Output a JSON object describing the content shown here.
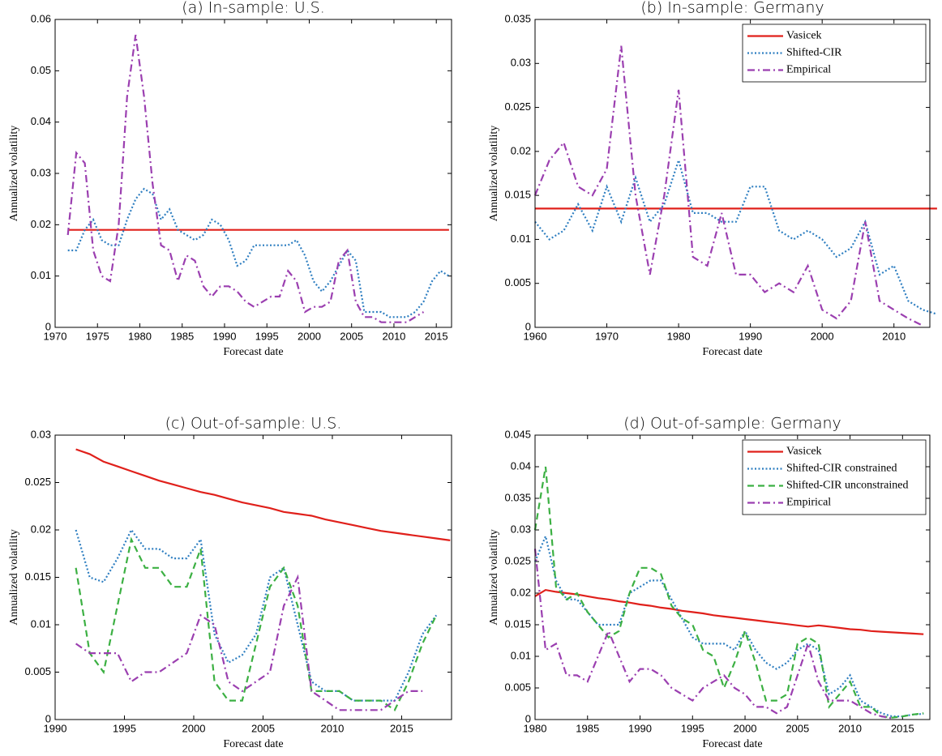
{
  "chart_data": [
    {
      "type": "line",
      "title": "(a) In-sample: U.S.",
      "xlabel": "Forecast date",
      "ylabel": "Annualized volatility",
      "x": [
        1971.5,
        1972.5,
        1973.5,
        1974.5,
        1975.5,
        1976.5,
        1977.5,
        1978.5,
        1979.5,
        1980.5,
        1981.5,
        1982.5,
        1983.5,
        1984.5,
        1985.5,
        1986.5,
        1987.5,
        1988.5,
        1989.5,
        1990.5,
        1991.5,
        1992.5,
        1993.5,
        1994.5,
        1995.5,
        1996.5,
        1997.5,
        1998.5,
        1999.5,
        2000.5,
        2001.5,
        2002.5,
        2003.5,
        2004.5,
        2005.5,
        2006.5,
        2007.5,
        2008.5,
        2009.5,
        2010.5,
        2011.5,
        2012.5,
        2013.5,
        2014.5,
        2015.5,
        2016.5
      ],
      "series": [
        {
          "color": "#e0201b",
          "style": "solid",
          "values": [
            0.019,
            0.019,
            0.019,
            0.019,
            0.019,
            0.019,
            0.019,
            0.019,
            0.019,
            0.019,
            0.019,
            0.019,
            0.019,
            0.019,
            0.019,
            0.019,
            0.019,
            0.019,
            0.019,
            0.019,
            0.019,
            0.019,
            0.019,
            0.019,
            0.019,
            0.019,
            0.019,
            0.019,
            0.019,
            0.019,
            0.019,
            0.019,
            0.019,
            0.019,
            0.019,
            0.019,
            0.019,
            0.019,
            0.019,
            0.019,
            0.019,
            0.019,
            0.019,
            0.019,
            0.019,
            0.019
          ]
        },
        {
          "color": "#2f7fc1",
          "style": "dotted",
          "values": [
            0.015,
            0.015,
            0.019,
            0.021,
            0.017,
            0.016,
            0.016,
            0.021,
            0.025,
            0.027,
            0.026,
            0.021,
            0.023,
            0.019,
            0.018,
            0.017,
            0.018,
            0.021,
            0.02,
            0.017,
            0.012,
            0.013,
            0.016,
            0.016,
            0.016,
            0.016,
            0.016,
            0.017,
            0.014,
            0.009,
            0.007,
            0.009,
            0.012,
            0.015,
            0.013,
            0.003,
            0.003,
            0.003,
            0.002,
            0.002,
            0.002,
            0.003,
            0.005,
            0.009,
            0.011,
            0.01
          ]
        },
        {
          "color": "#9b3fb0",
          "style": "dashdot",
          "values": [
            0.018,
            0.034,
            0.032,
            0.015,
            0.01,
            0.009,
            0.02,
            0.045,
            0.057,
            0.045,
            0.028,
            0.016,
            0.015,
            0.009,
            0.014,
            0.013,
            0.008,
            0.006,
            0.008,
            0.008,
            0.007,
            0.005,
            0.004,
            0.005,
            0.006,
            0.006,
            0.011,
            0.009,
            0.003,
            0.004,
            0.004,
            0.005,
            0.013,
            0.015,
            0.005,
            0.002,
            0.002,
            0.001,
            0.001,
            0.001,
            0.001,
            0.002,
            0.003,
            null,
            null,
            null
          ]
        }
      ],
      "xlim": [
        1970,
        2016.8
      ],
      "ylim": [
        0,
        0.06
      ],
      "xticks": [
        1970,
        1975,
        1980,
        1985,
        1990,
        1995,
        2000,
        2005,
        2010,
        2015
      ],
      "yticks": [
        0,
        0.01,
        0.02,
        0.03,
        0.04,
        0.05,
        0.06
      ],
      "legend": false
    },
    {
      "type": "line",
      "title": "(b) In-sample: Germany",
      "xlabel": "Forecast date",
      "ylabel": "Annualized volatility",
      "x": [
        1960,
        1962,
        1964,
        1966,
        1968,
        1970,
        1972,
        1974,
        1976,
        1978,
        1980,
        1982,
        1984,
        1986,
        1988,
        1990,
        1992,
        1994,
        1996,
        1998,
        2000,
        2002,
        2004,
        2006,
        2008,
        2010,
        2012,
        2014,
        2016
      ],
      "series": [
        {
          "name": "Vasicek",
          "color": "#e0201b",
          "style": "solid",
          "values": [
            0.0135,
            0.0135,
            0.0135,
            0.0135,
            0.0135,
            0.0135,
            0.0135,
            0.0135,
            0.0135,
            0.0135,
            0.0135,
            0.0135,
            0.0135,
            0.0135,
            0.0135,
            0.0135,
            0.0135,
            0.0135,
            0.0135,
            0.0135,
            0.0135,
            0.0135,
            0.0135,
            0.0135,
            0.0135,
            0.0135,
            0.0135,
            0.0135,
            0.0135
          ]
        },
        {
          "name": "Shifted-CIR",
          "color": "#2f7fc1",
          "style": "dotted",
          "values": [
            0.012,
            0.01,
            0.011,
            0.014,
            0.011,
            0.016,
            0.012,
            0.017,
            0.012,
            0.014,
            0.019,
            0.013,
            0.013,
            0.012,
            0.012,
            0.016,
            0.016,
            0.011,
            0.01,
            0.011,
            0.01,
            0.008,
            0.009,
            0.012,
            0.006,
            0.007,
            0.003,
            0.002,
            0.0015
          ]
        },
        {
          "name": "Empirical",
          "color": "#9b3fb0",
          "style": "dashdot",
          "values": [
            0.015,
            0.019,
            0.021,
            0.016,
            0.015,
            0.018,
            0.032,
            0.015,
            0.006,
            0.015,
            0.027,
            0.008,
            0.007,
            0.013,
            0.006,
            0.006,
            0.004,
            0.005,
            0.004,
            0.007,
            0.002,
            0.001,
            0.003,
            0.012,
            0.003,
            0.002,
            0.001,
            0.0002,
            null
          ]
        }
      ],
      "xlim": [
        1960,
        2015
      ],
      "ylim": [
        0,
        0.035
      ],
      "xticks": [
        1960,
        1970,
        1980,
        1990,
        2000,
        2010
      ],
      "yticks": [
        0,
        0.005,
        0.01,
        0.015,
        0.02,
        0.025,
        0.03,
        0.035
      ],
      "legend": "upper right"
    },
    {
      "type": "line",
      "title": "(c) Out-of-sample: U.S.",
      "xlabel": "Forecast date",
      "ylabel": "Annualized volatility",
      "x": [
        1991.5,
        1992.5,
        1993.5,
        1994.5,
        1995.5,
        1996.5,
        1997.5,
        1998.5,
        1999.5,
        2000.5,
        2001.5,
        2002.5,
        2003.5,
        2004.5,
        2005.5,
        2006.5,
        2007.5,
        2008.5,
        2009.5,
        2010.5,
        2011.5,
        2012.5,
        2013.5,
        2014.5,
        2015.5,
        2016.5,
        2017.5,
        2018.5
      ],
      "series": [
        {
          "color": "#e0201b",
          "style": "solid",
          "values": [
            0.0285,
            0.028,
            0.0272,
            0.0267,
            0.0262,
            0.0257,
            0.0252,
            0.0248,
            0.0244,
            0.024,
            0.0237,
            0.0233,
            0.0229,
            0.0226,
            0.0223,
            0.0219,
            0.0217,
            0.0215,
            0.0211,
            0.0208,
            0.0205,
            0.0202,
            0.0199,
            0.0197,
            0.0195,
            0.0193,
            0.0191,
            0.0189
          ]
        },
        {
          "color": "#2f7fc1",
          "style": "dotted",
          "values": [
            0.02,
            0.015,
            0.0145,
            0.017,
            0.02,
            0.018,
            0.018,
            0.017,
            0.017,
            0.019,
            0.009,
            0.006,
            0.0068,
            0.009,
            0.015,
            0.016,
            0.01,
            0.004,
            0.003,
            0.003,
            0.002,
            0.002,
            0.002,
            0.002,
            0.005,
            0.009,
            0.011,
            null
          ]
        },
        {
          "color": "#3cb043",
          "style": "dashed",
          "values": [
            0.016,
            0.007,
            0.005,
            0.012,
            0.019,
            0.016,
            0.016,
            0.014,
            0.014,
            0.018,
            0.004,
            0.002,
            0.002,
            0.008,
            0.014,
            0.016,
            0.012,
            0.003,
            0.003,
            0.003,
            0.002,
            0.002,
            0.002,
            0.001,
            0.004,
            0.008,
            0.011,
            null
          ]
        },
        {
          "color": "#9b3fb0",
          "style": "dashdot",
          "values": [
            0.008,
            0.007,
            0.007,
            0.007,
            0.004,
            0.005,
            0.005,
            0.006,
            0.007,
            0.011,
            0.01,
            0.004,
            0.003,
            0.004,
            0.005,
            0.012,
            0.015,
            0.003,
            0.002,
            0.001,
            0.001,
            0.001,
            0.001,
            0.002,
            0.003,
            0.003,
            null,
            null
          ]
        }
      ],
      "xlim": [
        1990,
        2018.6
      ],
      "ylim": [
        0,
        0.03
      ],
      "xticks": [
        1990,
        1995,
        2000,
        2005,
        2010,
        2015
      ],
      "yticks": [
        0,
        0.005,
        0.01,
        0.015,
        0.02,
        0.025,
        0.03
      ],
      "legend": false
    },
    {
      "type": "line",
      "title": "(d) Out-of-sample: Germany",
      "xlabel": "Forecast date",
      "ylabel": "Annualized volatility",
      "x": [
        1980,
        1981,
        1982,
        1983,
        1984,
        1985,
        1986,
        1987,
        1988,
        1989,
        1990,
        1991,
        1992,
        1993,
        1994,
        1995,
        1996,
        1997,
        1998,
        1999,
        2000,
        2001,
        2002,
        2003,
        2004,
        2005,
        2006,
        2007,
        2008,
        2009,
        2010,
        2011,
        2012,
        2013,
        2014,
        2015,
        2016,
        2017
      ],
      "series": [
        {
          "name": "Vasicek",
          "color": "#e0201b",
          "style": "solid",
          "values": [
            0.0195,
            0.0205,
            0.0202,
            0.02,
            0.0198,
            0.0195,
            0.0192,
            0.019,
            0.0187,
            0.0185,
            0.0182,
            0.018,
            0.0177,
            0.0175,
            0.0172,
            0.017,
            0.0168,
            0.0165,
            0.0163,
            0.0161,
            0.0159,
            0.0157,
            0.0155,
            0.0153,
            0.0151,
            0.0149,
            0.0147,
            0.0149,
            0.0147,
            0.0145,
            0.0143,
            0.0142,
            0.014,
            0.0139,
            0.0138,
            0.0137,
            0.0136,
            0.0135
          ]
        },
        {
          "name": "Shifted-CIR constrained",
          "color": "#2f7fc1",
          "style": "dotted",
          "values": [
            0.025,
            0.029,
            0.022,
            0.019,
            0.019,
            0.017,
            0.015,
            0.015,
            0.015,
            0.02,
            0.021,
            0.022,
            0.022,
            0.019,
            0.016,
            0.013,
            0.012,
            0.012,
            0.012,
            0.011,
            0.014,
            0.011,
            0.009,
            0.008,
            0.009,
            0.011,
            0.012,
            0.011,
            0.004,
            0.005,
            0.007,
            0.003,
            0.002,
            0.001,
            0.0005,
            0.0005,
            0.0008,
            0.0009
          ]
        },
        {
          "name": "Shifted-CIR unconstrained",
          "color": "#3cb043",
          "style": "dashed",
          "values": [
            0.03,
            0.04,
            0.021,
            0.019,
            0.02,
            0.017,
            0.015,
            0.013,
            0.014,
            0.02,
            0.024,
            0.024,
            0.023,
            0.018,
            0.016,
            0.015,
            0.011,
            0.01,
            0.005,
            0.009,
            0.014,
            0.009,
            0.003,
            0.003,
            0.004,
            0.012,
            0.013,
            0.012,
            0.002,
            0.004,
            0.006,
            0.002,
            0.002,
            0.0005,
            0.0003,
            0.0005,
            0.0008,
            0.001
          ]
        },
        {
          "name": "Empirical",
          "color": "#9b3fb0",
          "style": "dashdot",
          "values": [
            0.027,
            0.011,
            0.012,
            0.007,
            0.007,
            0.006,
            0.01,
            0.014,
            0.01,
            0.006,
            0.008,
            0.008,
            0.007,
            0.005,
            0.004,
            0.003,
            0.005,
            0.006,
            0.007,
            0.005,
            0.004,
            0.002,
            0.002,
            0.001,
            0.002,
            0.007,
            0.012,
            0.006,
            0.003,
            0.003,
            0.003,
            0.002,
            0.001,
            0.0005,
            0.0002,
            null,
            null,
            null
          ]
        }
      ],
      "xlim": [
        1980,
        2017.6
      ],
      "ylim": [
        0,
        0.045
      ],
      "xticks": [
        1980,
        1985,
        1990,
        1995,
        2000,
        2005,
        2010,
        2015
      ],
      "yticks": [
        0,
        0.005,
        0.01,
        0.015,
        0.02,
        0.025,
        0.03,
        0.035,
        0.04,
        0.045
      ],
      "legend": "upper right"
    }
  ]
}
